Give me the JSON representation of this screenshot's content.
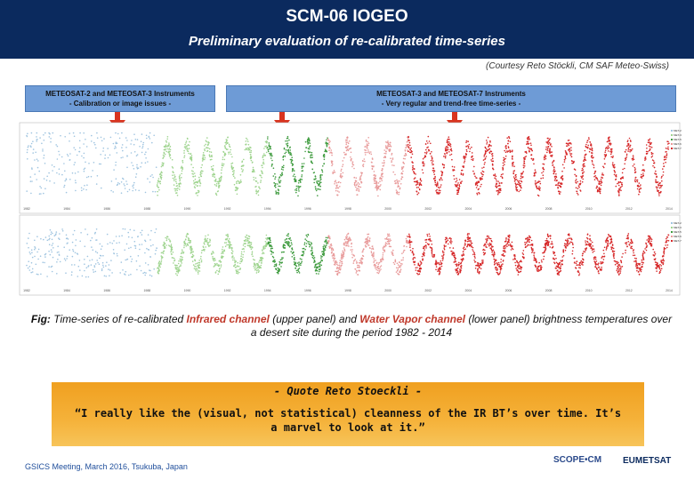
{
  "header": {
    "title": "SCM-06 IOGEO",
    "subtitle": "Preliminary evaluation of re-calibrated time-series"
  },
  "courtesy": "(Courtesy Reto Stöckli, CM SAF Meteo-Swiss)",
  "callouts": {
    "left_line1": "METEOSAT-2 and METEOSAT-3 Instruments",
    "left_line2": "- Calibration or image issues -",
    "right_line1": "METEOSAT-3 and METEOSAT-7 Instruments",
    "right_line2": "- Very regular and trend-free time-series -"
  },
  "caption": {
    "fig": "Fig:",
    "part1": " Time-series of re-calibrated ",
    "ir": "Infrared channel",
    "part2": " (upper panel) and ",
    "wv": "Water Vapor channel",
    "part3": " (lower panel) brightness temperatures over a desert site during the period 1982 - 2014"
  },
  "quote": {
    "heading": "- Quote Reto Stoeckli -",
    "text": "“I really like the (visual, not statistical) cleanness of the IR BT’s over time. It’s a marvel to look at it.”"
  },
  "footer": {
    "meeting": "GSICS Meeting, March 2016, Tsukuba, Japan",
    "logo_scope": "SCOPE•CM",
    "logo_eumetsat": "EUMETSAT"
  },
  "chart_data": [
    {
      "type": "scatter",
      "panel": "upper",
      "channel": "Infrared",
      "x_start": 1982,
      "x_end": 2014,
      "x_ticks": [
        "1982",
        "1984",
        "1986",
        "1988",
        "1990",
        "1992",
        "1994",
        "1996",
        "1998",
        "2000",
        "2002",
        "2004",
        "2006",
        "2008",
        "2010",
        "2012",
        "2014"
      ],
      "series": [
        {
          "name": "MET-2",
          "color": "#9fc4e0",
          "x_range": [
            1982,
            1988.5
          ]
        },
        {
          "name": "MET-3",
          "color": "#9fd48f",
          "x_range": [
            1988.5,
            1994
          ]
        },
        {
          "name": "MET-5",
          "color": "#3e9b3e",
          "x_range": [
            1994,
            1997
          ]
        },
        {
          "name": "MET-6",
          "color": "#e89a9a",
          "x_range": [
            1997,
            2001
          ]
        },
        {
          "name": "MET-7",
          "color": "#d62728",
          "x_range": [
            2001,
            2014
          ]
        }
      ]
    },
    {
      "type": "scatter",
      "panel": "lower",
      "channel": "Water Vapor",
      "x_start": 1982,
      "x_end": 2014,
      "x_ticks": [
        "1982",
        "1984",
        "1986",
        "1988",
        "1990",
        "1992",
        "1994",
        "1996",
        "1998",
        "2000",
        "2002",
        "2004",
        "2006",
        "2008",
        "2010",
        "2012",
        "2014"
      ],
      "series": [
        {
          "name": "MET-2",
          "color": "#9fc4e0",
          "x_range": [
            1982,
            1988.5
          ]
        },
        {
          "name": "MET-3",
          "color": "#9fd48f",
          "x_range": [
            1988.5,
            1994
          ]
        },
        {
          "name": "MET-5",
          "color": "#3e9b3e",
          "x_range": [
            1994,
            1997
          ]
        },
        {
          "name": "MET-6",
          "color": "#e89a9a",
          "x_range": [
            1997,
            2001
          ]
        },
        {
          "name": "MET-7",
          "color": "#d62728",
          "x_range": [
            2001,
            2014
          ]
        }
      ]
    }
  ]
}
